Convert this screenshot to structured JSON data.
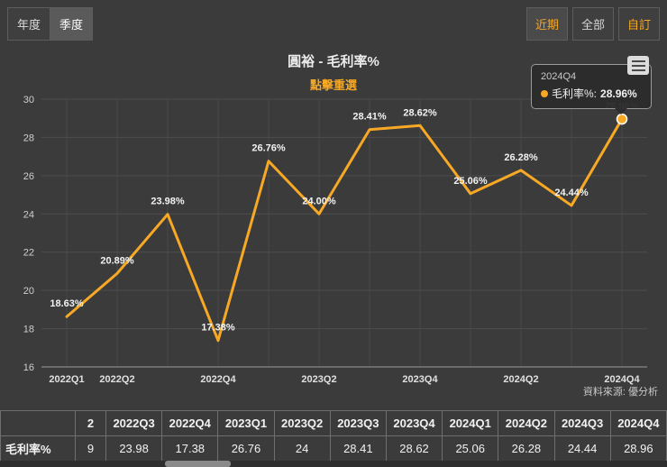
{
  "toolbar": {
    "period_buttons": [
      {
        "label": "年度"
      },
      {
        "label": "季度"
      }
    ],
    "range_buttons": [
      {
        "label": "近期"
      },
      {
        "label": "全部"
      },
      {
        "label": "自訂"
      }
    ]
  },
  "chart": {
    "title": "圓裕 - 毛利率%",
    "subtitle": "點擊重選",
    "source": "資料來源: 優分析"
  },
  "tooltip": {
    "title": "2024Q4",
    "series_label": "毛利率%: ",
    "value": "28.96%"
  },
  "chart_data": {
    "type": "line",
    "title": "圓裕 - 毛利率%",
    "series_name": "毛利率%",
    "categories": [
      "2022Q1",
      "2022Q2",
      "2022Q3",
      "2022Q4",
      "2023Q1",
      "2023Q2",
      "2023Q3",
      "2023Q4",
      "2024Q1",
      "2024Q2",
      "2024Q3",
      "2024Q4"
    ],
    "values": [
      18.63,
      20.89,
      23.98,
      17.38,
      26.76,
      24.0,
      28.41,
      28.62,
      25.06,
      26.28,
      24.44,
      28.96
    ],
    "point_labels": [
      "18.63%",
      "20.89%",
      "23.98%",
      "17.38%",
      "26.76%",
      "24.00%",
      "28.41%",
      "28.62%",
      "25.06%",
      "26.28%",
      "24.44%",
      "28.96%"
    ],
    "x_tick_indices": [
      0,
      1,
      3,
      5,
      7,
      9,
      11
    ],
    "label_below_indices": [],
    "y_ticks": [
      16,
      18,
      20,
      22,
      24,
      26,
      28,
      30
    ],
    "ylim": [
      16,
      30
    ],
    "xlabel": "",
    "ylabel": "",
    "grid": true,
    "legend": "none",
    "line_color": "#f7a825",
    "highlight_index": 11
  },
  "table": {
    "header": [
      "",
      "2",
      "2022Q3",
      "2022Q4",
      "2023Q1",
      "2023Q2",
      "2023Q3",
      "2023Q4",
      "2024Q1",
      "2024Q2",
      "2024Q3",
      "2024Q4"
    ],
    "rows": [
      [
        "毛利率%",
        "9",
        "23.98",
        "17.38",
        "26.76",
        "24",
        "28.41",
        "28.62",
        "25.06",
        "26.28",
        "24.44",
        "28.96"
      ]
    ]
  }
}
